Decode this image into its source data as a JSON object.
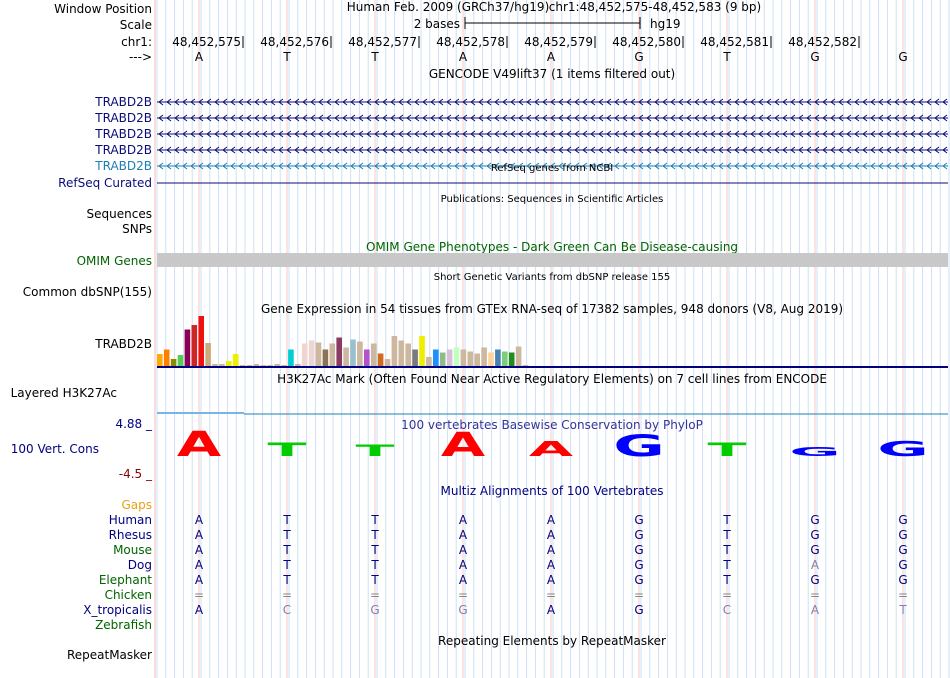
{
  "header": {
    "window_position_label": "Window Position",
    "scale_label": "Scale",
    "chrom_label": "chr1:",
    "strand_label": "--->",
    "assembly": "Human Feb. 2009 (GRCh37/hg19)",
    "position": "chr1:48,452,575-48,452,583 (9 bp)",
    "scale_text": "2 bases",
    "scale_db": "hg19",
    "ruler_positions": [
      "48,452,575",
      "48,452,576",
      "48,452,577",
      "48,452,578",
      "48,452,579",
      "48,452,580",
      "48,452,581",
      "48,452,582"
    ],
    "bases": [
      "A",
      "T",
      "T",
      "A",
      "A",
      "G",
      "T",
      "G",
      "G"
    ]
  },
  "gencode": {
    "title": "GENCODE V49lift37 (1 items filtered out)",
    "transcripts": [
      "TRABD2B",
      "TRABD2B",
      "TRABD2B",
      "TRABD2B",
      "TRABD2B"
    ]
  },
  "refseq": {
    "title": "RefSeq genes from NCBI",
    "label": "RefSeq Curated"
  },
  "publications": {
    "title": "Publications: Sequences in Scientific Articles",
    "label1": "Sequences",
    "label2": "SNPs"
  },
  "omim": {
    "title": "OMIM Gene Phenotypes - Dark Green Can Be Disease-causing",
    "label": "OMIM Genes"
  },
  "dbsnp": {
    "title": "Short Genetic Variants from dbSNP release 155",
    "label": "Common dbSNP(155)"
  },
  "gtex": {
    "title": "Gene Expression in 54 tissues from GTEx RNA-seq of 17382 samples, 948 donors (V8, Aug 2019)",
    "label": "TRABD2B",
    "values": [
      0.24,
      0.33,
      0.14,
      0.22,
      0.73,
      0.82,
      1.0,
      0.46,
      0.04,
      0.04,
      0.1,
      0.24,
      0.02,
      0.02,
      0.04,
      0.02,
      0.02,
      0.04,
      0.02,
      0.33,
      0.04,
      0.45,
      0.51,
      0.47,
      0.33,
      0.45,
      0.57,
      0.37,
      0.53,
      0.49,
      0.33,
      0.45,
      0.25,
      0.14,
      0.6,
      0.51,
      0.45,
      0.33,
      0.6,
      0.18,
      0.33,
      0.27,
      0.33,
      0.37,
      0.33,
      0.29,
      0.25,
      0.37,
      0.27,
      0.33,
      0.29,
      0.27,
      0.39,
      0.02
    ],
    "colors": [
      "#FFAA00",
      "#FF7F00",
      "#8B8B00",
      "#55CC55",
      "#8B0057",
      "#CD2626",
      "#EE1111",
      "#CDAA7D",
      "#CDB79E",
      "#CDB79E",
      "#EEEE00",
      "#EEEE00",
      "#CDB79E",
      "#CDB79E",
      "#CDB79E",
      "#CDB79E",
      "#CDB79E",
      "#CDB79E",
      "#CDB79E",
      "#00CED1",
      "#CDB79E",
      "#EED5D2",
      "#EED5D2",
      "#CDB79E",
      "#8B7355",
      "#CDB79E",
      "#8B3A62",
      "#CDB79E",
      "#9AC0CD",
      "#CDB79E",
      "#B452CD",
      "#CDB79E",
      "#D2691E",
      "#CDB79E",
      "#CDB79E",
      "#CDB79E",
      "#CDB79E",
      "#7A7A7A",
      "#EEEE00",
      "#CDB79E",
      "#1E90FF",
      "#8FBC8F",
      "#D8BFD8",
      "#C1FFC1",
      "#CDB79E",
      "#CDB79E",
      "#CDB79E",
      "#CDB79E",
      "#FFD39B",
      "#4682B4",
      "#7CCD7C",
      "#228B22",
      "#CDB79E",
      "#CDB79E"
    ]
  },
  "h3k27ac": {
    "title": "H3K27Ac Mark (Often Found Near Active Regulatory Elements) on 7 cell lines from ENCODE",
    "label": "Layered H3K27Ac"
  },
  "phylop": {
    "title": "100 vertebrates Basewise Conservation by PhyloP",
    "label": "100 Vert. Cons",
    "max_label": "4.88 _",
    "min_label": "-4.5 _",
    "letters": [
      "A",
      "T",
      "T",
      "A",
      "A",
      "G",
      "T",
      "G",
      "G"
    ],
    "scores": [
      1.0,
      0.55,
      0.45,
      0.95,
      0.6,
      0.85,
      0.55,
      0.35,
      0.6
    ],
    "colors": [
      "#FF0000",
      "#00CC00",
      "#00CC00",
      "#FF0000",
      "#FF0000",
      "#0000FF",
      "#00CC00",
      "#0000FF",
      "#0000FF"
    ]
  },
  "multiz": {
    "title": "Multiz Alignments of 100 Vertebrates",
    "gaps_label": "Gaps",
    "species": [
      {
        "name": "Human",
        "bases": [
          "A",
          "T",
          "T",
          "A",
          "A",
          "G",
          "T",
          "G",
          "G"
        ],
        "color": "#000080"
      },
      {
        "name": "Rhesus",
        "bases": [
          "A",
          "T",
          "T",
          "A",
          "A",
          "G",
          "T",
          "G",
          "G"
        ],
        "color": "#000080"
      },
      {
        "name": "Mouse",
        "bases": [
          "A",
          "T",
          "T",
          "A",
          "A",
          "G",
          "T",
          "G",
          "G"
        ],
        "color": "#006400"
      },
      {
        "name": "Dog",
        "bases": [
          "A",
          "T",
          "T",
          "A",
          "A",
          "G",
          "T",
          "A",
          "G"
        ],
        "color": "#000080"
      },
      {
        "name": "Elephant",
        "bases": [
          "A",
          "T",
          "T",
          "A",
          "A",
          "G",
          "T",
          "G",
          "G"
        ],
        "color": "#006400"
      },
      {
        "name": "Chicken",
        "bases": [
          "=",
          "=",
          "=",
          "=",
          "=",
          "=",
          "=",
          "=",
          "="
        ],
        "color": "#006400"
      },
      {
        "name": "X_tropicalis",
        "bases": [
          "A",
          "C",
          "G",
          "G",
          "A",
          "G",
          "C",
          "A",
          "T"
        ],
        "color": "#000080"
      },
      {
        "name": "Zebrafish",
        "bases": [
          "",
          "",
          "",
          "",
          "",
          "",
          "",
          "",
          ""
        ],
        "color": "#006400"
      }
    ]
  },
  "repeatmasker": {
    "title": "Repeating Elements by RepeatMasker",
    "label": "RepeatMasker"
  },
  "colors": {
    "gencode_dark": "#0C0C78",
    "gencode_light": "#1E7FB4",
    "refseq": "#0C0C78",
    "omim_label": "#006400",
    "omim_bar": "#C8C8C8",
    "gaps": "#E6A019",
    "phylop_max": "#000080",
    "phylop_min": "#8B0000",
    "mismatch": "#8080B0"
  }
}
